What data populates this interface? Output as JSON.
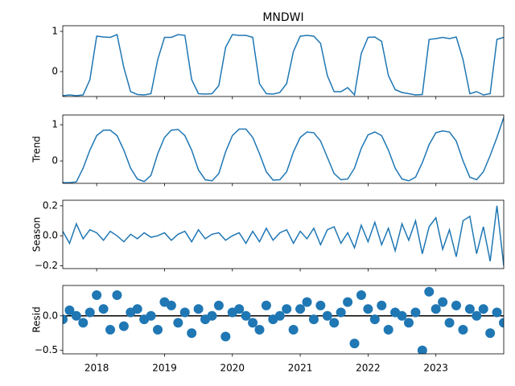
{
  "chart_data": [
    {
      "type": "line",
      "title": "MNDWI",
      "color": "#1f77b4",
      "x": [
        2017.5,
        2017.6,
        2017.7,
        2017.8,
        2017.9,
        2018.0,
        2018.1,
        2018.2,
        2018.3,
        2018.4,
        2018.5,
        2018.6,
        2018.7,
        2018.8,
        2018.9,
        2019.0,
        2019.1,
        2019.2,
        2019.3,
        2019.4,
        2019.5,
        2019.6,
        2019.7,
        2019.8,
        2019.9,
        2020.0,
        2020.1,
        2020.2,
        2020.3,
        2020.4,
        2020.5,
        2020.6,
        2020.7,
        2020.8,
        2020.9,
        2021.0,
        2021.1,
        2021.2,
        2021.3,
        2021.4,
        2021.5,
        2021.6,
        2021.7,
        2021.8,
        2021.9,
        2022.0,
        2022.1,
        2022.2,
        2022.3,
        2022.4,
        2022.5,
        2022.6,
        2022.7,
        2022.8,
        2022.9,
        2023.0,
        2023.1,
        2023.2,
        2023.3,
        2023.4,
        2023.5,
        2023.6,
        2023.7,
        2023.8,
        2023.9,
        2024.0
      ],
      "values": [
        -0.6,
        -0.58,
        -0.6,
        -0.58,
        -0.2,
        0.88,
        0.86,
        0.85,
        0.92,
        0.1,
        -0.5,
        -0.57,
        -0.58,
        -0.55,
        0.3,
        0.85,
        0.85,
        0.92,
        0.9,
        -0.2,
        -0.55,
        -0.56,
        -0.55,
        -0.35,
        0.6,
        0.92,
        0.9,
        0.9,
        0.85,
        -0.3,
        -0.55,
        -0.56,
        -0.52,
        -0.3,
        0.5,
        0.88,
        0.9,
        0.88,
        0.7,
        -0.1,
        -0.5,
        -0.5,
        -0.4,
        -0.58,
        0.45,
        0.85,
        0.86,
        0.75,
        -0.1,
        -0.45,
        -0.52,
        -0.55,
        -0.58,
        -0.57,
        0.8,
        0.82,
        0.85,
        0.82,
        0.86,
        0.3,
        -0.55,
        -0.5,
        -0.58,
        -0.55,
        0.8,
        0.85
      ],
      "xlim": [
        2017.5,
        2024.0
      ],
      "xticks": [
        2018,
        2019,
        2020,
        2021,
        2022,
        2023
      ],
      "ylim": [
        -0.62,
        1.14
      ],
      "yticks": [
        0,
        1
      ]
    },
    {
      "type": "line",
      "ylabel": "Trend",
      "color": "#1f77b4",
      "x": [
        2017.5,
        2017.6,
        2017.7,
        2017.8,
        2017.9,
        2018.0,
        2018.1,
        2018.2,
        2018.3,
        2018.4,
        2018.5,
        2018.6,
        2018.7,
        2018.8,
        2018.9,
        2019.0,
        2019.1,
        2019.2,
        2019.3,
        2019.4,
        2019.5,
        2019.6,
        2019.7,
        2019.8,
        2019.9,
        2020.0,
        2020.1,
        2020.2,
        2020.3,
        2020.4,
        2020.5,
        2020.6,
        2020.7,
        2020.8,
        2020.9,
        2021.0,
        2021.1,
        2021.2,
        2021.3,
        2021.4,
        2021.5,
        2021.6,
        2021.7,
        2021.8,
        2021.9,
        2022.0,
        2022.1,
        2022.2,
        2022.3,
        2022.4,
        2022.5,
        2022.6,
        2022.7,
        2022.8,
        2022.9,
        2023.0,
        2023.1,
        2023.2,
        2023.3,
        2023.4,
        2023.5,
        2023.6,
        2023.7,
        2023.8,
        2023.9,
        2024.0
      ],
      "values": [
        -0.6,
        -0.6,
        -0.58,
        -0.2,
        0.3,
        0.7,
        0.85,
        0.85,
        0.7,
        0.3,
        -0.2,
        -0.5,
        -0.57,
        -0.4,
        0.2,
        0.65,
        0.85,
        0.87,
        0.7,
        0.3,
        -0.25,
        -0.52,
        -0.55,
        -0.35,
        0.25,
        0.7,
        0.88,
        0.88,
        0.65,
        0.2,
        -0.3,
        -0.53,
        -0.52,
        -0.3,
        0.25,
        0.65,
        0.8,
        0.78,
        0.55,
        0.1,
        -0.35,
        -0.52,
        -0.5,
        -0.2,
        0.35,
        0.72,
        0.8,
        0.7,
        0.3,
        -0.2,
        -0.5,
        -0.55,
        -0.45,
        -0.05,
        0.45,
        0.78,
        0.83,
        0.8,
        0.55,
        0.0,
        -0.45,
        -0.52,
        -0.3,
        0.15,
        0.65,
        1.2
      ],
      "xlim": [
        2017.5,
        2024.0
      ],
      "xticks": [
        2018,
        2019,
        2020,
        2021,
        2022,
        2023
      ],
      "ylim": [
        -0.62,
        1.27
      ],
      "yticks": [
        0,
        1
      ]
    },
    {
      "type": "line",
      "ylabel": "Season",
      "color": "#1f77b4",
      "x": [
        2017.5,
        2017.6,
        2017.7,
        2017.8,
        2017.9,
        2018.0,
        2018.1,
        2018.2,
        2018.3,
        2018.4,
        2018.5,
        2018.6,
        2018.7,
        2018.8,
        2018.9,
        2019.0,
        2019.1,
        2019.2,
        2019.3,
        2019.4,
        2019.5,
        2019.6,
        2019.7,
        2019.8,
        2019.9,
        2020.0,
        2020.1,
        2020.2,
        2020.3,
        2020.4,
        2020.5,
        2020.6,
        2020.7,
        2020.8,
        2020.9,
        2021.0,
        2021.1,
        2021.2,
        2021.3,
        2021.4,
        2021.5,
        2021.6,
        2021.7,
        2021.8,
        2021.9,
        2022.0,
        2022.1,
        2022.2,
        2022.3,
        2022.4,
        2022.5,
        2022.6,
        2022.7,
        2022.8,
        2022.9,
        2023.0,
        2023.1,
        2023.2,
        2023.3,
        2023.4,
        2023.5,
        2023.6,
        2023.7,
        2023.8,
        2023.9,
        2024.0
      ],
      "values": [
        0.03,
        -0.05,
        0.08,
        -0.02,
        0.04,
        0.02,
        -0.03,
        0.03,
        0.0,
        -0.04,
        0.01,
        -0.02,
        0.02,
        -0.01,
        0.0,
        0.02,
        -0.03,
        0.01,
        0.03,
        -0.04,
        0.04,
        -0.02,
        0.01,
        0.02,
        -0.03,
        0.0,
        0.02,
        -0.05,
        0.03,
        -0.04,
        0.05,
        -0.03,
        0.02,
        0.04,
        -0.05,
        0.03,
        -0.02,
        0.05,
        -0.06,
        0.04,
        0.06,
        -0.05,
        0.02,
        -0.08,
        0.07,
        -0.04,
        0.09,
        -0.06,
        0.05,
        -0.1,
        0.08,
        -0.03,
        0.1,
        -0.12,
        0.06,
        0.12,
        -0.09,
        0.04,
        -0.14,
        0.1,
        0.13,
        -0.12,
        0.06,
        -0.17,
        0.2,
        -0.2
      ],
      "xlim": [
        2017.5,
        2024.0
      ],
      "xticks": [
        2018,
        2019,
        2020,
        2021,
        2022,
        2023
      ],
      "ylim": [
        -0.219,
        0.237
      ],
      "yticks": [
        {
          "value": -0.2,
          "label": "−0.2"
        },
        {
          "value": 0,
          "label": "0.0"
        },
        0.2
      ]
    },
    {
      "type": "scatter",
      "ylabel": "Resid",
      "color": "#1f77b4",
      "x": [
        2017.5,
        2017.6,
        2017.7,
        2017.8,
        2017.9,
        2018.0,
        2018.1,
        2018.2,
        2018.3,
        2018.4,
        2018.5,
        2018.6,
        2018.7,
        2018.8,
        2018.9,
        2019.0,
        2019.1,
        2019.2,
        2019.3,
        2019.4,
        2019.5,
        2019.6,
        2019.7,
        2019.8,
        2019.9,
        2020.0,
        2020.1,
        2020.2,
        2020.3,
        2020.4,
        2020.5,
        2020.6,
        2020.7,
        2020.8,
        2020.9,
        2021.0,
        2021.1,
        2021.2,
        2021.3,
        2021.4,
        2021.5,
        2021.6,
        2021.7,
        2021.8,
        2021.9,
        2022.0,
        2022.1,
        2022.2,
        2022.3,
        2022.4,
        2022.5,
        2022.6,
        2022.7,
        2022.8,
        2022.9,
        2023.0,
        2023.1,
        2023.2,
        2023.3,
        2023.4,
        2023.5,
        2023.6,
        2023.7,
        2023.8,
        2023.9,
        2024.0
      ],
      "values": [
        -0.05,
        0.08,
        0.0,
        -0.1,
        0.05,
        0.3,
        0.1,
        -0.2,
        0.3,
        -0.15,
        0.05,
        0.1,
        -0.05,
        0.0,
        -0.2,
        0.2,
        0.15,
        -0.1,
        0.05,
        -0.25,
        0.1,
        -0.05,
        0.0,
        0.15,
        -0.3,
        0.05,
        0.1,
        0.0,
        -0.1,
        -0.2,
        0.15,
        -0.05,
        0.0,
        0.1,
        -0.2,
        0.1,
        0.2,
        -0.05,
        0.15,
        0.0,
        -0.1,
        0.05,
        0.2,
        -0.4,
        0.3,
        0.1,
        -0.05,
        0.15,
        -0.2,
        0.05,
        0.0,
        -0.1,
        0.05,
        -0.5,
        0.35,
        0.1,
        0.2,
        -0.1,
        0.15,
        -0.2,
        0.1,
        0.0,
        0.1,
        -0.25,
        0.05,
        -0.1
      ],
      "xlim": [
        2017.5,
        2024.0
      ],
      "xticks": [
        2018,
        2019,
        2020,
        2021,
        2022,
        2023
      ],
      "ylim": [
        -0.55,
        0.44
      ],
      "yticks": [
        {
          "value": -0.5,
          "label": "−0.5"
        },
        {
          "value": 0,
          "label": "0.0"
        }
      ]
    }
  ]
}
